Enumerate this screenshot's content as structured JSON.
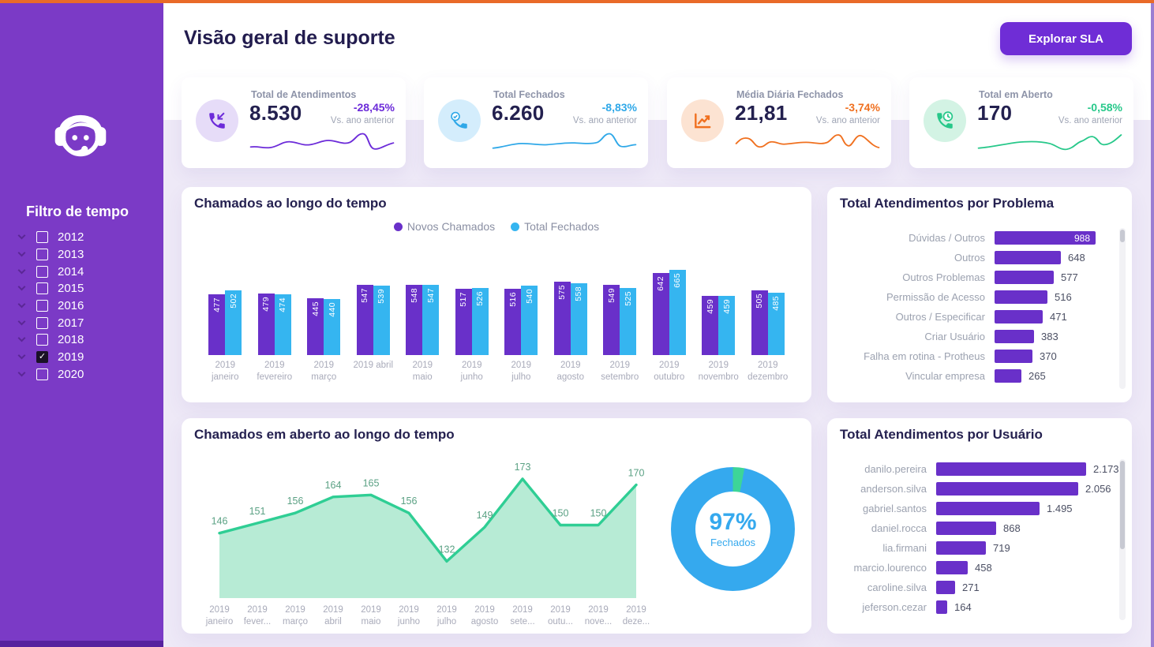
{
  "colors": {
    "topbar_orange": "#E96A28",
    "right_border_purple": "#9B7ED2",
    "sidebar_purple": "#7B3AC6",
    "sidebar_footer_purple": "#56219E",
    "accent_button_purple": "#6F2DD6",
    "bar_purple": "#6930C9",
    "bar_blue": "#35B5F0",
    "green": "#2FCE94",
    "orange": "#F0701F",
    "title_navy": "#221C4E"
  },
  "sidebar": {
    "filter_title": "Filtro de tempo",
    "years": [
      {
        "label": "2012",
        "checked": false
      },
      {
        "label": "2013",
        "checked": false
      },
      {
        "label": "2014",
        "checked": false
      },
      {
        "label": "2015",
        "checked": false
      },
      {
        "label": "2016",
        "checked": false
      },
      {
        "label": "2017",
        "checked": false
      },
      {
        "label": "2018",
        "checked": false
      },
      {
        "label": "2019",
        "checked": true
      },
      {
        "label": "2020",
        "checked": false
      }
    ]
  },
  "header": {
    "title": "Visão geral de suporte",
    "button_label": "Explorar SLA"
  },
  "kpis": [
    {
      "label": "Total de Atendimentos",
      "value": "8.530",
      "delta": "-28,45%",
      "note": "Vs. ano anterior",
      "icon": "phone-incoming-icon",
      "color": "#6C2BD9",
      "icon_bg": "#E6DCF8"
    },
    {
      "label": "Total Fechados",
      "value": "6.260",
      "delta": "-8,83%",
      "note": "Vs. ano anterior",
      "icon": "phone-check-icon",
      "color": "#2FA8E8",
      "icon_bg": "#D4EDFC"
    },
    {
      "label": "Média Diária Fechados",
      "value": "21,81",
      "delta": "-3,74%",
      "note": "Vs. ano anterior",
      "icon": "chart-up-icon",
      "color": "#F0701F",
      "icon_bg": "#FCE3D2"
    },
    {
      "label": "Total em Aberto",
      "value": "170",
      "delta": "-0,58%",
      "note": "Vs. ano anterior",
      "icon": "phone-clock-icon",
      "color": "#27C88A",
      "icon_bg": "#D3F3E4"
    }
  ],
  "chart_data": [
    {
      "id": "chamados_mensal",
      "type": "bar",
      "title": "Chamados ao longo do tempo",
      "legend_position": "top",
      "categories": [
        "2019 janeiro",
        "2019 fevereiro",
        "2019 março",
        "2019 abril",
        "2019 maio",
        "2019 junho",
        "2019 julho",
        "2019 agosto",
        "2019 setembro",
        "2019 outubro",
        "2019 novembro",
        "2019 dezembro"
      ],
      "x_labels": [
        [
          "2019",
          "janeiro"
        ],
        [
          "2019",
          "fevereiro"
        ],
        [
          "2019",
          "março"
        ],
        [
          "2019 abril",
          ""
        ],
        [
          "2019",
          "maio"
        ],
        [
          "2019",
          "junho"
        ],
        [
          "2019",
          "julho"
        ],
        [
          "2019",
          "agosto"
        ],
        [
          "2019",
          "setembro"
        ],
        [
          "2019",
          "outubro"
        ],
        [
          "2019",
          "novembro"
        ],
        [
          "2019",
          "dezembro"
        ]
      ],
      "series": [
        {
          "name": "Novos Chamados",
          "color": "#6930C9",
          "values": [
            477,
            479,
            445,
            547,
            548,
            517,
            516,
            575,
            549,
            642,
            459,
            505
          ]
        },
        {
          "name": "Total Fechados",
          "color": "#35B5F0",
          "values": [
            502,
            474,
            440,
            539,
            547,
            526,
            540,
            558,
            525,
            665,
            459,
            485
          ]
        }
      ],
      "ylim": [
        0,
        700
      ],
      "grid": false
    },
    {
      "id": "por_problema",
      "type": "bar",
      "orientation": "horizontal",
      "title": "Total Atendimentos por Problema",
      "categories": [
        "Dúvidas / Outros",
        "Outros",
        "Outros Problemas",
        "Permissão de Acesso",
        "Outros / Especificar",
        "Criar Usuário",
        "Falha em rotina - Protheus",
        "Vincular empresa"
      ],
      "values": [
        988,
        648,
        577,
        516,
        471,
        383,
        370,
        265
      ],
      "value_labels": [
        "988",
        "648",
        "577",
        "516",
        "471",
        "383",
        "370",
        "265"
      ],
      "value_inside": [
        true,
        false,
        false,
        false,
        false,
        false,
        false,
        false
      ],
      "bar_color": "#6930C9"
    },
    {
      "id": "em_aberto",
      "type": "area",
      "title": "Chamados em aberto ao longo do tempo",
      "categories": [
        "2019 janeiro",
        "2019 fever...",
        "2019 março",
        "2019 abril",
        "2019 maio",
        "2019 junho",
        "2019 julho",
        "2019 agosto",
        "2019 sete...",
        "2019 outu...",
        "2019 nove...",
        "2019 deze..."
      ],
      "x_labels": [
        [
          "2019",
          "janeiro"
        ],
        [
          "2019",
          "fever..."
        ],
        [
          "2019",
          "março"
        ],
        [
          "2019",
          "abril"
        ],
        [
          "2019",
          "maio"
        ],
        [
          "2019",
          "junho"
        ],
        [
          "2019",
          "julho"
        ],
        [
          "2019",
          "agosto"
        ],
        [
          "2019",
          "sete..."
        ],
        [
          "2019",
          "outu..."
        ],
        [
          "2019",
          "nove..."
        ],
        [
          "2019",
          "deze..."
        ]
      ],
      "values": [
        146,
        151,
        156,
        164,
        165,
        156,
        132,
        149,
        173,
        150,
        150,
        170
      ],
      "line_color": "#2FCE94",
      "fill_color": "#B7EBD5",
      "label_color": "#5BA184"
    },
    {
      "id": "fechados_pct",
      "type": "pie",
      "value_pct": 97,
      "center_label": "97%",
      "center_sub": "Fechados",
      "color": "#35A9EE",
      "remainder_color": "#3DD598"
    },
    {
      "id": "por_usuario",
      "type": "bar",
      "orientation": "horizontal",
      "title": "Total Atendimentos por Usuário",
      "categories": [
        "danilo.pereira",
        "anderson.silva",
        "gabriel.santos",
        "daniel.rocca",
        "lia.firmani",
        "marcio.lourenco",
        "caroline.silva",
        "jeferson.cezar"
      ],
      "values": [
        2173,
        2056,
        1495,
        868,
        719,
        458,
        271,
        164
      ],
      "value_labels": [
        "2.173",
        "2.056",
        "1.495",
        "868",
        "719",
        "458",
        "271",
        "164"
      ],
      "value_inside": [
        false,
        false,
        false,
        false,
        false,
        false,
        false,
        false
      ],
      "bar_color": "#6930C9"
    }
  ]
}
